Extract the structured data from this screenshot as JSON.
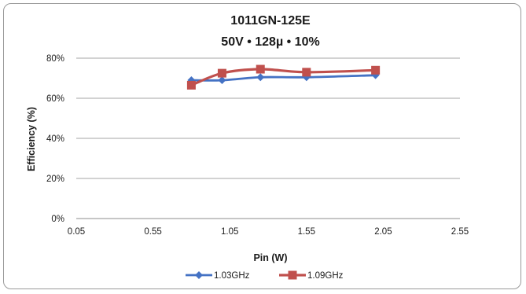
{
  "chart_data": {
    "type": "line",
    "title": "1011GN-125E",
    "subtitle": "50V • 128µ • 10%",
    "xlabel": "Pin (W)",
    "ylabel": "Efficiency (%)",
    "xlim": [
      0.05,
      2.55
    ],
    "ylim": [
      0,
      80
    ],
    "x_ticks": [
      "0.05",
      "0.55",
      "1.05",
      "1.55",
      "2.05",
      "2.55"
    ],
    "x_tick_values": [
      0.05,
      0.55,
      1.05,
      1.55,
      2.05,
      2.55
    ],
    "y_ticks": [
      "0%",
      "20%",
      "40%",
      "60%",
      "80%"
    ],
    "y_tick_values": [
      0,
      20,
      40,
      60,
      80
    ],
    "grid": "horizontal",
    "legend_position": "bottom",
    "series": [
      {
        "name": "1.03GHz",
        "color": "#4472C4",
        "marker": "diamond",
        "x": [
          0.8,
          1.0,
          1.25,
          1.55,
          2.0
        ],
        "y": [
          69,
          69,
          70.5,
          70.5,
          71.5
        ]
      },
      {
        "name": "1.09GHz",
        "color": "#C0504D",
        "marker": "square",
        "x": [
          0.8,
          1.0,
          1.25,
          1.55,
          2.0
        ],
        "y": [
          66.5,
          72.5,
          74.5,
          73,
          74
        ]
      }
    ]
  }
}
